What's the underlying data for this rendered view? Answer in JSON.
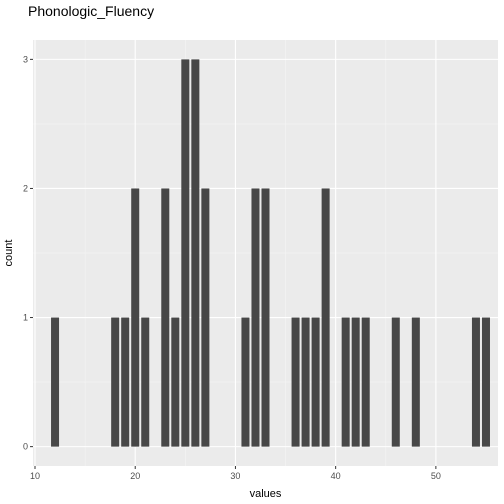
{
  "chart_data": {
    "type": "bar",
    "title": "Phonologic_Fluency",
    "xlabel": "values",
    "ylabel": "count",
    "xlim": [
      9.8,
      56.2
    ],
    "ylim": [
      -0.15,
      3.15
    ],
    "x_ticks": [
      10,
      20,
      30,
      40,
      50
    ],
    "y_ticks": [
      0,
      1,
      2,
      3
    ],
    "grid": true,
    "bar_color": "#474747",
    "panel_color": "#ebebeb",
    "x": [
      12,
      18,
      19,
      20,
      21,
      23,
      24,
      25,
      26,
      27,
      31,
      32,
      33,
      36,
      37,
      38,
      39,
      41,
      42,
      43,
      46,
      48,
      54,
      55
    ],
    "values": [
      1,
      1,
      1,
      2,
      1,
      2,
      1,
      3,
      3,
      2,
      1,
      2,
      2,
      1,
      1,
      1,
      2,
      1,
      1,
      1,
      1,
      1,
      1,
      1
    ]
  }
}
